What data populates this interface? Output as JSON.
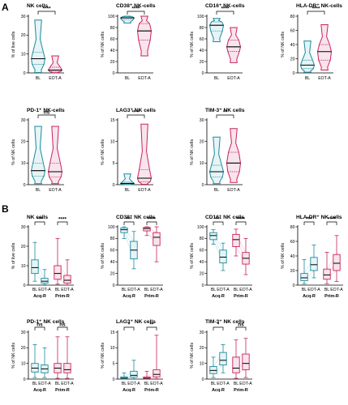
{
  "panel_letters": [
    "A",
    "B"
  ],
  "colors": {
    "BL": "#1c8a9c",
    "EOT-A": "#c8235e",
    "BL_fill": "#e6f4f6",
    "EOTA_fill": "#f8e4ec"
  },
  "chart_data": [
    {
      "type": "violin",
      "panel": "A",
      "title": "NK cells",
      "ylabel": "% of live cells",
      "categories": [
        "BL",
        "EOT-A"
      ],
      "ylim": [
        0,
        30
      ],
      "yticks": [
        0,
        10,
        20,
        30
      ],
      "significance": "****",
      "series": [
        {
          "name": "BL",
          "min": 0.2,
          "q1": 4.5,
          "median": 7.5,
          "q3": 11.0,
          "max": 28.0
        },
        {
          "name": "EOT-A",
          "min": 0.1,
          "q1": 0.8,
          "median": 1.5,
          "q3": 3.0,
          "max": 9.0
        }
      ]
    },
    {
      "type": "violin",
      "panel": "A",
      "title": "CD38⁺ NK-cells",
      "ylabel": "% of NK cells",
      "categories": [
        "BL",
        "EOT-A"
      ],
      "ylim": [
        0,
        100
      ],
      "yticks": [
        0,
        20,
        40,
        60,
        80,
        100
      ],
      "significance": "****",
      "series": [
        {
          "name": "BL",
          "min": 88,
          "q1": 94,
          "median": 97,
          "q3": 99,
          "max": 100
        },
        {
          "name": "EOT-A",
          "min": 30,
          "q1": 58,
          "median": 74,
          "q3": 87,
          "max": 100
        }
      ]
    },
    {
      "type": "violin",
      "panel": "A",
      "title": "CD16⁺ NK-cells",
      "ylabel": "% of NK cells",
      "categories": [
        "BL",
        "EOT-A"
      ],
      "ylim": [
        0,
        100
      ],
      "yticks": [
        0,
        20,
        40,
        60,
        80,
        100
      ],
      "significance": "****",
      "series": [
        {
          "name": "BL",
          "min": 55,
          "q1": 74,
          "median": 84,
          "q3": 90,
          "max": 96
        },
        {
          "name": "EOT-A",
          "min": 18,
          "q1": 38,
          "median": 46,
          "q3": 58,
          "max": 80
        }
      ]
    },
    {
      "type": "violin",
      "panel": "A",
      "title": "HLA-DR⁺ NK-cells",
      "ylabel": "% of NK cells",
      "categories": [
        "BL",
        "EOT-A"
      ],
      "ylim": [
        0,
        80
      ],
      "yticks": [
        0,
        20,
        40,
        60,
        80
      ],
      "significance": "****",
      "series": [
        {
          "name": "BL",
          "min": 1,
          "q1": 6,
          "median": 11,
          "q3": 18,
          "max": 45
        },
        {
          "name": "EOT-A",
          "min": 4,
          "q1": 18,
          "median": 30,
          "q3": 40,
          "max": 68
        }
      ]
    },
    {
      "type": "violin",
      "panel": "A",
      "title": "PD-1⁺ NK-cells",
      "ylabel": "% of NK cells",
      "categories": [
        "BL",
        "EOT-A"
      ],
      "ylim": [
        0,
        30
      ],
      "yticks": [
        0,
        10,
        20,
        30
      ],
      "significance": "ns",
      "series": [
        {
          "name": "BL",
          "min": 0.5,
          "q1": 4,
          "median": 6.5,
          "q3": 10,
          "max": 27
        },
        {
          "name": "EOT-A",
          "min": 0.5,
          "q1": 3.5,
          "median": 6,
          "q3": 10,
          "max": 27
        }
      ]
    },
    {
      "type": "violin",
      "panel": "A",
      "title": "LAG3⁺ NK cells",
      "ylabel": "% of NK cells",
      "categories": [
        "BL",
        "EOT-A"
      ],
      "ylim": [
        0,
        15
      ],
      "yticks": [
        0,
        5,
        10,
        15
      ],
      "significance": "****",
      "series": [
        {
          "name": "BL",
          "min": 0,
          "q1": 0.1,
          "median": 0.3,
          "q3": 0.6,
          "max": 2.5
        },
        {
          "name": "EOT-A",
          "min": 0.1,
          "q1": 0.7,
          "median": 1.5,
          "q3": 3.5,
          "max": 14
        }
      ]
    },
    {
      "type": "violin",
      "panel": "A",
      "title": "TIM-3⁺ NK cells",
      "ylabel": "% of NK cells",
      "categories": [
        "BL",
        "EOT-A"
      ],
      "ylim": [
        0,
        30
      ],
      "yticks": [
        0,
        10,
        20,
        30
      ],
      "significance": "**",
      "series": [
        {
          "name": "BL",
          "min": 0.5,
          "q1": 3.5,
          "median": 6,
          "q3": 9,
          "max": 22
        },
        {
          "name": "EOT-A",
          "min": 1,
          "q1": 6,
          "median": 10,
          "q3": 15,
          "max": 26
        }
      ]
    },
    {
      "type": "boxplot",
      "panel": "B",
      "title": "NK cells",
      "ylabel": "% of live cells",
      "categories": [
        "BL",
        "EOT-A",
        "BL",
        "EOT-A"
      ],
      "groups": [
        "Acq-R",
        "Prim-R"
      ],
      "ylim": [
        0,
        30
      ],
      "yticks": [
        0,
        10,
        20,
        30
      ],
      "significance": [
        "***",
        "****"
      ],
      "boxes": [
        {
          "min": 2,
          "q1": 6,
          "median": 9,
          "q3": 13,
          "max": 22
        },
        {
          "min": 0.2,
          "q1": 1,
          "median": 2,
          "q3": 3.5,
          "max": 8
        },
        {
          "min": 0.5,
          "q1": 3,
          "median": 6,
          "q3": 10,
          "max": 24
        },
        {
          "min": 0.1,
          "q1": 1,
          "median": 2.5,
          "q3": 5,
          "max": 13
        }
      ]
    },
    {
      "type": "boxplot",
      "panel": "B",
      "title": "CD38⁺ NK cells",
      "ylabel": "% of NK cells",
      "categories": [
        "BL",
        "EOT-A",
        "BL",
        "EOT-A"
      ],
      "groups": [
        "Acq-R",
        "Prim-R"
      ],
      "ylim": [
        0,
        100
      ],
      "yticks": [
        0,
        20,
        40,
        60,
        80,
        100
      ],
      "significance": [
        "***",
        "****"
      ],
      "boxes": [
        {
          "min": 80,
          "q1": 90,
          "median": 95,
          "q3": 98,
          "max": 100
        },
        {
          "min": 28,
          "q1": 45,
          "median": 60,
          "q3": 75,
          "max": 92
        },
        {
          "min": 85,
          "q1": 93,
          "median": 97,
          "q3": 99,
          "max": 100
        },
        {
          "min": 40,
          "q1": 68,
          "median": 82,
          "q3": 90,
          "max": 100
        }
      ]
    },
    {
      "type": "boxplot",
      "panel": "B",
      "title": "CD16⁺ NK cells",
      "ylabel": "% of NK cells",
      "categories": [
        "BL",
        "EOT-A",
        "BL",
        "EOT-A"
      ],
      "groups": [
        "Acq-R",
        "Prim-R"
      ],
      "ylim": [
        0,
        100
      ],
      "yticks": [
        0,
        20,
        40,
        60,
        80,
        100
      ],
      "significance": [
        "***",
        "****"
      ],
      "boxes": [
        {
          "min": 70,
          "q1": 78,
          "median": 85,
          "q3": 90,
          "max": 95
        },
        {
          "min": 25,
          "q1": 38,
          "median": 48,
          "q3": 60,
          "max": 72
        },
        {
          "min": 50,
          "q1": 66,
          "median": 78,
          "q3": 87,
          "max": 96
        },
        {
          "min": 18,
          "q1": 36,
          "median": 46,
          "q3": 56,
          "max": 80
        }
      ]
    },
    {
      "type": "boxplot",
      "panel": "B",
      "title": "HLA-DR⁺ NK cells",
      "ylabel": "% of NK cells",
      "categories": [
        "BL",
        "EOT-A",
        "BL",
        "EOT-A"
      ],
      "groups": [
        "Acq-R",
        "Prim-R"
      ],
      "ylim": [
        0,
        80
      ],
      "yticks": [
        0,
        20,
        40,
        60,
        80
      ],
      "significance": [
        "***",
        "****"
      ],
      "boxes": [
        {
          "min": 2,
          "q1": 6,
          "median": 10,
          "q3": 16,
          "max": 35
        },
        {
          "min": 10,
          "q1": 20,
          "median": 28,
          "q3": 38,
          "max": 55
        },
        {
          "min": 2,
          "q1": 8,
          "median": 14,
          "q3": 22,
          "max": 45
        },
        {
          "min": 5,
          "q1": 20,
          "median": 30,
          "q3": 42,
          "max": 68
        }
      ]
    },
    {
      "type": "boxplot",
      "panel": "B",
      "title": "PD-1⁺ NK cells",
      "ylabel": "% of NK cells",
      "categories": [
        "BL",
        "EOT-A",
        "BL",
        "EOT-A"
      ],
      "groups": [
        "Acq-R",
        "Prim-R"
      ],
      "ylim": [
        0,
        30
      ],
      "yticks": [
        0,
        10,
        20,
        30
      ],
      "significance": [
        "ns",
        "ns"
      ],
      "boxes": [
        {
          "min": 1,
          "q1": 4.5,
          "median": 7,
          "q3": 10,
          "max": 22
        },
        {
          "min": 1,
          "q1": 4,
          "median": 6.5,
          "q3": 9,
          "max": 20
        },
        {
          "min": 0.5,
          "q1": 4,
          "median": 7,
          "q3": 10,
          "max": 27
        },
        {
          "min": 0.5,
          "q1": 4,
          "median": 6,
          "q3": 10,
          "max": 27
        }
      ]
    },
    {
      "type": "boxplot",
      "panel": "B",
      "title": "LAG3⁺ NK cells",
      "ylabel": "% of NK cells",
      "categories": [
        "BL",
        "EOT-A",
        "BL",
        "EOT-A"
      ],
      "groups": [
        "Acq-R",
        "Prim-R"
      ],
      "ylim": [
        0,
        15
      ],
      "yticks": [
        0,
        5,
        10,
        15
      ],
      "significance": [
        "*",
        "**"
      ],
      "boxes": [
        {
          "min": 0,
          "q1": 0.1,
          "median": 0.3,
          "q3": 0.7,
          "max": 2
        },
        {
          "min": 0.1,
          "q1": 0.6,
          "median": 1.2,
          "q3": 2.5,
          "max": 6
        },
        {
          "min": 0,
          "q1": 0.1,
          "median": 0.3,
          "q3": 0.7,
          "max": 2.5
        },
        {
          "min": 0.1,
          "q1": 0.7,
          "median": 1.5,
          "q3": 3,
          "max": 14
        }
      ]
    },
    {
      "type": "boxplot",
      "panel": "B",
      "title": "TIM-3⁺ NK cells",
      "ylabel": "% of NK cells",
      "categories": [
        "BL",
        "EOT-A",
        "BL",
        "EOT-A"
      ],
      "groups": [
        "Acq-R",
        "Prim-R"
      ],
      "ylim": [
        0,
        30
      ],
      "yticks": [
        0,
        10,
        20,
        30
      ],
      "significance": [
        "*",
        "ns"
      ],
      "boxes": [
        {
          "min": 1,
          "q1": 3.5,
          "median": 5.5,
          "q3": 8,
          "max": 14
        },
        {
          "min": 4,
          "q1": 9,
          "median": 12,
          "q3": 17,
          "max": 22
        },
        {
          "min": 0.5,
          "q1": 4,
          "median": 7,
          "q3": 14,
          "max": 25
        },
        {
          "min": 1,
          "q1": 6,
          "median": 10,
          "q3": 16,
          "max": 26
        }
      ]
    }
  ]
}
